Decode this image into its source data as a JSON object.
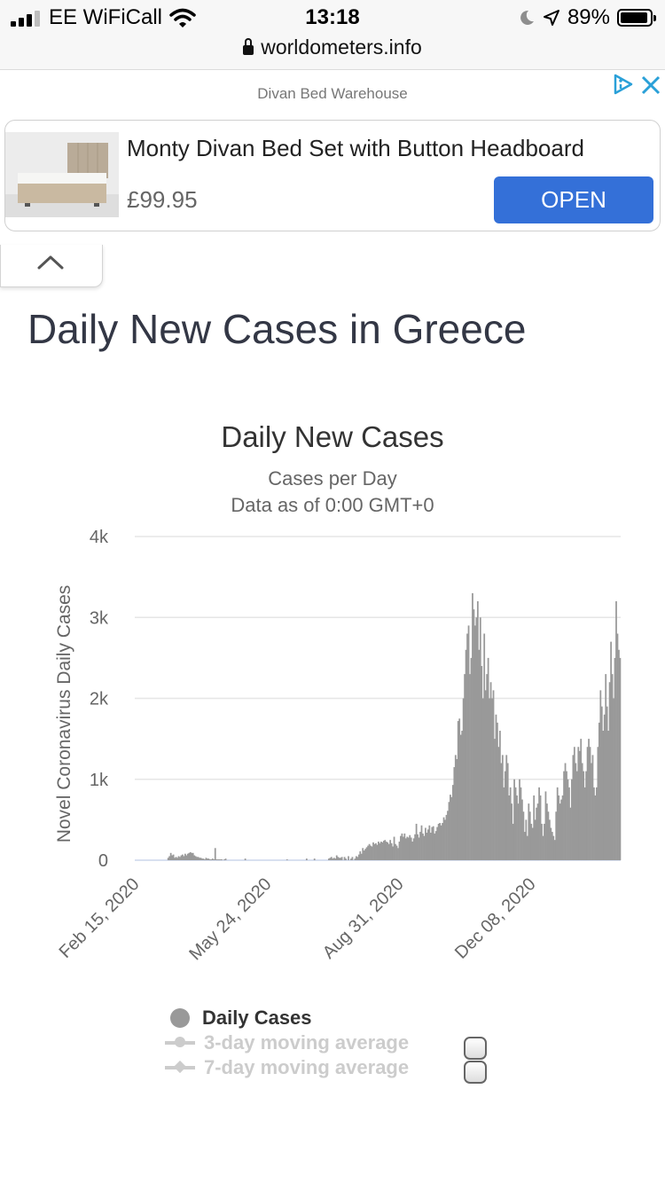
{
  "status_bar": {
    "carrier": "EE WiFiCall",
    "time": "13:18",
    "battery": "89%",
    "url": "worldometers.info"
  },
  "ad": {
    "source": "Divan Bed Warehouse",
    "title": "Monty Divan Bed Set with Button Headboard",
    "price": "£99.95",
    "cta": "OPEN",
    "accent_color": "#3470d8"
  },
  "page": {
    "title": "Daily New Cases in Greece"
  },
  "chart_data": {
    "type": "bar",
    "title": "Daily New Cases",
    "subtitle": "Cases per Day",
    "subtitle2": "Data as of 0:00 GMT+0",
    "ylabel": "Novel Coronavirus Daily Cases",
    "ylim": [
      0,
      4000
    ],
    "y_ticks": [
      {
        "value": 0,
        "label": "0"
      },
      {
        "value": 1000,
        "label": "1k"
      },
      {
        "value": 2000,
        "label": "2k"
      },
      {
        "value": 3000,
        "label": "3k"
      },
      {
        "value": 4000,
        "label": "4k"
      }
    ],
    "x_start": "2020-02-15",
    "x_end": "2021-02-13",
    "x_tick_labels": [
      {
        "date": "2020-02-15",
        "label": "Feb 15, 2020"
      },
      {
        "date": "2020-05-24",
        "label": "May 24, 2020"
      },
      {
        "date": "2020-08-31",
        "label": "Aug 31, 2020"
      },
      {
        "date": "2020-12-08",
        "label": "Dec 08, 2020"
      }
    ],
    "bar_color": "#999999",
    "grid": true,
    "legend_position": "bottom",
    "series": [
      {
        "name": "Daily Cases",
        "values": [
          0,
          0,
          0,
          0,
          0,
          0,
          0,
          0,
          0,
          0,
          0,
          0,
          0,
          0,
          0,
          0,
          0,
          0,
          0,
          0,
          0,
          0,
          0,
          0,
          0,
          30,
          50,
          90,
          60,
          70,
          30,
          40,
          30,
          50,
          40,
          60,
          70,
          50,
          80,
          60,
          80,
          90,
          100,
          90,
          90,
          60,
          50,
          40,
          40,
          30,
          30,
          20,
          20,
          10,
          30,
          20,
          20,
          10,
          10,
          20,
          10,
          150,
          10,
          10,
          10,
          10,
          10,
          0,
          10,
          20,
          0,
          0,
          0,
          0,
          0,
          0,
          0,
          0,
          0,
          0,
          0,
          0,
          0,
          0,
          20,
          0,
          0,
          0,
          0,
          0,
          0,
          0,
          0,
          0,
          0,
          0,
          0,
          0,
          0,
          0,
          0,
          0,
          0,
          0,
          0,
          0,
          0,
          0,
          0,
          0,
          0,
          0,
          0,
          0,
          0,
          0,
          10,
          0,
          0,
          0,
          0,
          0,
          0,
          0,
          0,
          0,
          0,
          0,
          0,
          0,
          0,
          20,
          0,
          0,
          0,
          0,
          0,
          20,
          0,
          0,
          0,
          0,
          0,
          0,
          0,
          0,
          0,
          0,
          20,
          30,
          40,
          20,
          30,
          20,
          60,
          40,
          30,
          30,
          40,
          0,
          40,
          20,
          0,
          50,
          0,
          20,
          40,
          0,
          20,
          50,
          40,
          70,
          110,
          80,
          150,
          120,
          140,
          160,
          180,
          200,
          180,
          170,
          220,
          200,
          210,
          190,
          230,
          210,
          230,
          220,
          240,
          250,
          230,
          220,
          200,
          250,
          210,
          170,
          290,
          200,
          180,
          150,
          230,
          300,
          330,
          290,
          330,
          270,
          290,
          280,
          310,
          280,
          230,
          270,
          320,
          450,
          320,
          280,
          350,
          430,
          330,
          300,
          400,
          340,
          380,
          430,
          340,
          410,
          420,
          330,
          360,
          410,
          450,
          460,
          430,
          460,
          530,
          500,
          560,
          610,
          720,
          810,
          780,
          930,
          1150,
          1300,
          1250,
          1720,
          1750,
          1550,
          1600,
          2000,
          2300,
          2600,
          2800,
          2900,
          2300,
          2500,
          3300,
          3100,
          2900,
          3000,
          3200,
          2600,
          3000,
          2400,
          2000,
          2800,
          2100,
          2300,
          2500,
          2000,
          2200,
          2000,
          2100,
          1500,
          1800,
          1700,
          1400,
          1600,
          1200,
          1300,
          900,
          1100,
          1300,
          1200,
          800,
          900,
          700,
          450,
          1000,
          900,
          800,
          700,
          1000,
          900,
          750,
          600,
          350,
          500,
          300,
          700,
          600,
          450,
          400,
          800,
          500,
          650,
          700,
          900,
          800,
          450,
          300,
          450,
          850,
          700,
          600,
          500,
          400,
          350,
          300,
          250,
          600,
          900,
          800,
          700,
          750,
          800,
          1100,
          1200,
          1100,
          1000,
          900,
          650,
          1000,
          1300,
          1400,
          1200,
          1100,
          1400,
          1350,
          1500,
          1200,
          1100,
          900,
          1100,
          1400,
          1500,
          1400,
          1200,
          1300,
          900,
          800,
          900,
          1400,
          1700,
          2100,
          1900,
          1600,
          1800,
          2300,
          1900,
          1600,
          2200,
          2700,
          2300,
          2000,
          2500,
          3200,
          2800,
          2600,
          2500
        ]
      }
    ],
    "legend": [
      {
        "name": "Daily Cases",
        "active": true
      },
      {
        "name": "3-day moving average",
        "active": false
      },
      {
        "name": "7-day moving average",
        "active": false
      }
    ]
  }
}
